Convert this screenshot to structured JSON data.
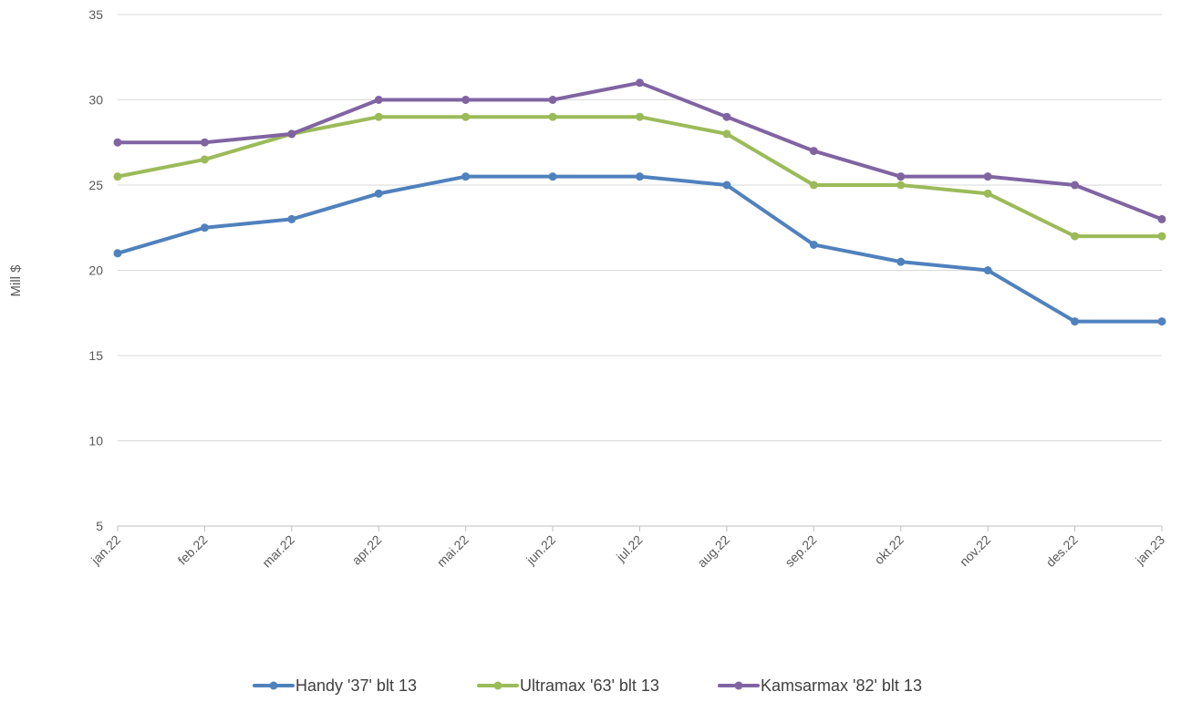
{
  "chart_data": {
    "type": "line",
    "title": "",
    "xlabel": "",
    "ylabel": "Mill $",
    "ylim": [
      5,
      35
    ],
    "yticks": [
      5,
      10,
      15,
      20,
      25,
      30,
      35
    ],
    "grid": true,
    "legend_position": "bottom",
    "categories": [
      "jan.22",
      "feb.22",
      "mar.22",
      "apr.22",
      "mai.22",
      "jun.22",
      "jul.22",
      "aug.22",
      "sep.22",
      "okt.22",
      "nov.22",
      "des.22",
      "jan.23"
    ],
    "series": [
      {
        "name": "Handy '37' blt 13",
        "color": "#4f81bd",
        "values": [
          21,
          22.5,
          23,
          24.5,
          25.5,
          25.5,
          25.5,
          25,
          21.5,
          20.5,
          20,
          17,
          17
        ]
      },
      {
        "name": "Ultramax '63' blt 13",
        "color": "#9bbb59",
        "values": [
          25.5,
          26.5,
          28,
          29,
          29,
          29,
          29,
          28,
          25,
          25,
          24.5,
          22,
          22
        ]
      },
      {
        "name": "Kamsarmax '82' blt 13",
        "color": "#8064a2",
        "values": [
          27.5,
          27.5,
          28,
          30,
          30,
          30,
          31,
          29,
          27,
          25.5,
          25.5,
          25,
          23
        ]
      }
    ]
  }
}
